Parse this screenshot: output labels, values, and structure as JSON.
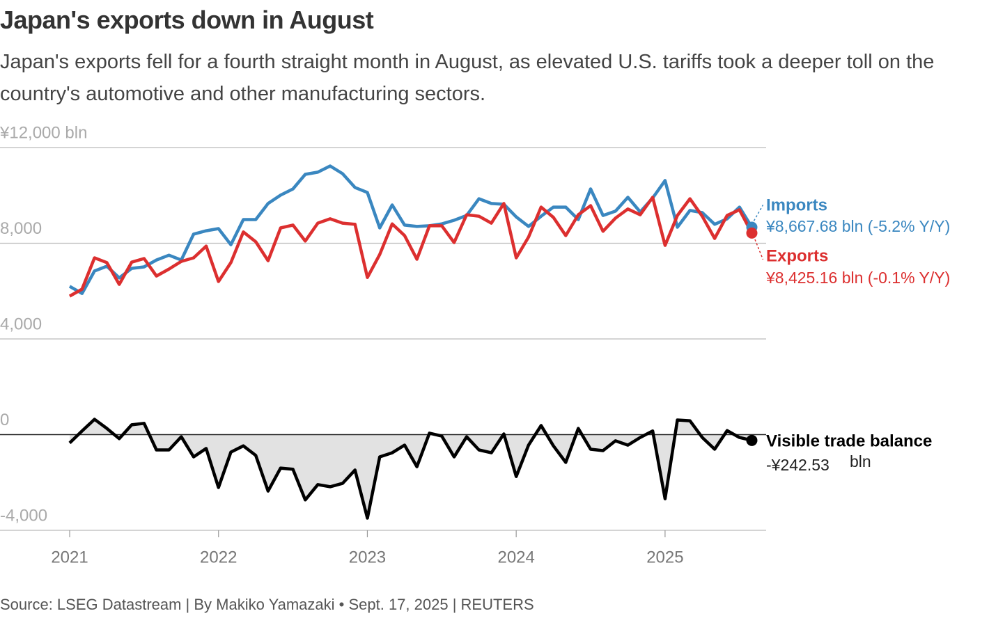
{
  "chart_data": {
    "type": "line",
    "title": "Japan's exports down in August",
    "subtitle": "Japan's exports fell for a fourth straight month in August, as elevated U.S. tariffs took a deeper toll on the country's automotive and other manufacturing sectors.",
    "source": "Source: LSEG Datastream | By Makiko Yamazaki • Sept. 17, 2025 | REUTERS",
    "x": [
      2021,
      2021.083,
      2021.167,
      2021.25,
      2021.333,
      2021.417,
      2021.5,
      2021.583,
      2021.667,
      2021.75,
      2021.833,
      2021.917,
      2022,
      2022.083,
      2022.167,
      2022.25,
      2022.333,
      2022.417,
      2022.5,
      2022.583,
      2022.667,
      2022.75,
      2022.833,
      2022.917,
      2023,
      2023.083,
      2023.167,
      2023.25,
      2023.333,
      2023.417,
      2023.5,
      2023.583,
      2023.667,
      2023.75,
      2023.833,
      2023.917,
      2024,
      2024.083,
      2024.167,
      2024.25,
      2024.333,
      2024.417,
      2024.5,
      2024.583,
      2024.667,
      2024.75,
      2024.833,
      2024.917,
      2025,
      2025.083,
      2025.167,
      2025.25,
      2025.333,
      2025.417,
      2025.5,
      2025.583
    ],
    "xlim": [
      2020.532,
      2025.679
    ],
    "xticks": [
      2021,
      2022,
      2023,
      2024,
      2025
    ],
    "ylim": [
      -4000,
      12000
    ],
    "yticks": [
      {
        "value": 12000,
        "label": "¥12,000 bln"
      },
      {
        "value": 8000,
        "label": "8,000"
      },
      {
        "value": 4000,
        "label": "4,000"
      },
      0,
      {
        "value": -4000,
        "label": "-4,000"
      }
    ],
    "grid": true,
    "series": [
      {
        "name": "Imports",
        "color": "#3a87c0",
        "annotation": "¥8,667.68 bln (-5.2% Y/Y)",
        "values": [
          6200,
          5900,
          6840,
          7040,
          6550,
          6950,
          7010,
          7300,
          7500,
          7300,
          8380,
          8520,
          8610,
          7940,
          8990,
          8990,
          9660,
          10010,
          10270,
          10880,
          10970,
          11230,
          10910,
          10330,
          10120,
          8640,
          9600,
          8760,
          8700,
          8730,
          8810,
          8960,
          9160,
          9860,
          9660,
          9630,
          9100,
          8700,
          9130,
          9510,
          9510,
          8990,
          10270,
          9160,
          9340,
          9920,
          9310,
          9890,
          10620,
          8670,
          9370,
          9280,
          8790,
          9020,
          9510,
          8667.68
        ]
      },
      {
        "name": "Exports",
        "color": "#dc2f2f",
        "annotation": "¥8,425.16  bln (-0.1% Y/Y)",
        "values": [
          5790,
          6080,
          7390,
          7190,
          6280,
          7210,
          7360,
          6630,
          6920,
          7240,
          7390,
          7880,
          6400,
          7190,
          8470,
          8060,
          7270,
          8640,
          8760,
          8090,
          8840,
          9020,
          8840,
          8790,
          6570,
          7530,
          8810,
          8320,
          7330,
          8730,
          8730,
          8030,
          9190,
          9130,
          8840,
          9660,
          7390,
          8260,
          9510,
          9080,
          8320,
          9190,
          9570,
          8500,
          9050,
          9430,
          9190,
          9920,
          7910,
          9160,
          9860,
          9130,
          8200,
          9160,
          9400,
          8425.16
        ]
      },
      {
        "name": "Visible trade balance",
        "color": "#000000",
        "area_color": "#e2e2e2",
        "annotation": "-¥242.53",
        "annotation_unit": "bln",
        "values": [
          -350,
          150,
          640,
          260,
          -170,
          410,
          470,
          -640,
          -640,
          -90,
          -930,
          -580,
          -2210,
          -730,
          -470,
          -870,
          -2360,
          -1400,
          -1450,
          -2730,
          -2090,
          -2180,
          -2040,
          -1480,
          -3490,
          -930,
          -760,
          -440,
          -1340,
          60,
          -60,
          -930,
          -90,
          -640,
          -760,
          30,
          -1750,
          -440,
          380,
          -470,
          -1160,
          260,
          -610,
          -670,
          -260,
          -440,
          -120,
          150,
          -2680,
          610,
          580,
          -120,
          -610,
          170,
          -120,
          -242.53
        ]
      }
    ]
  }
}
